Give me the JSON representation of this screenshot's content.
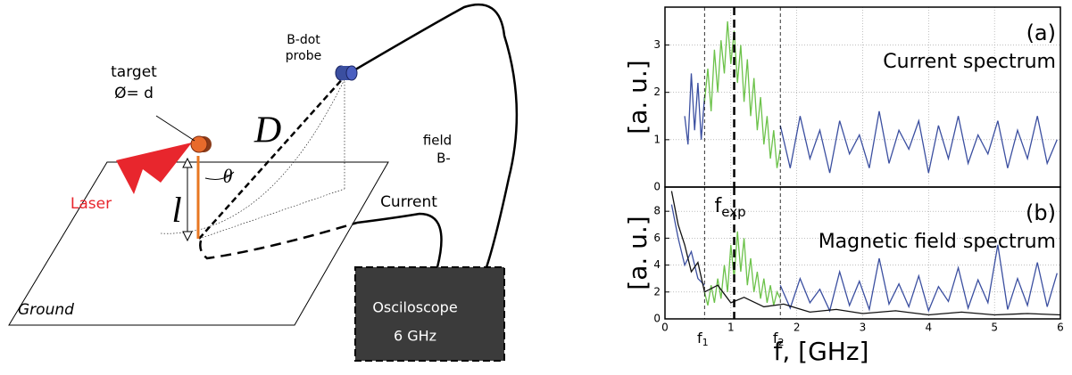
{
  "diagram": {
    "probe_line1": "B-dot",
    "probe_line2": "probe",
    "target": "target",
    "target_size": "Ø= d",
    "distance": "D",
    "angle": "θ",
    "height": "l",
    "laser": "Laser",
    "field_line1": "field",
    "field_line2": "B-",
    "current": "Current",
    "ground": "Ground",
    "scope_line1": "Osciloscope",
    "scope_line2": "6 GHz"
  },
  "chart_data": [
    {
      "type": "line",
      "ylabel": "[a. u.]",
      "panel": "(a)",
      "title": "Current spectrum",
      "xlim": [
        0,
        6
      ],
      "xticks": [
        0,
        1,
        2,
        3,
        4,
        5,
        6
      ],
      "ylim": [
        0,
        3.8
      ],
      "yticks": [
        0,
        1,
        2,
        3
      ],
      "grid": true,
      "series": [
        {
          "color": "#3b4fa0",
          "x": [
            0.3,
            0.35,
            0.4,
            0.45,
            0.5,
            0.55,
            0.6,
            1.2,
            1.75,
            1.9,
            2.05,
            2.2,
            2.35,
            2.5,
            2.65,
            2.8,
            2.95,
            3.1,
            3.25,
            3.4,
            3.55,
            3.7,
            3.85,
            4.0,
            4.15,
            4.3,
            4.45,
            4.6,
            4.75,
            4.9,
            5.05,
            5.2,
            5.35,
            5.5,
            5.65,
            5.8,
            5.95
          ],
          "values": [
            1.5,
            0.9,
            2.4,
            1.2,
            2.2,
            1.0,
            1.9,
            null,
            1.3,
            0.4,
            1.5,
            0.6,
            1.2,
            0.3,
            1.4,
            0.7,
            1.1,
            0.4,
            1.6,
            0.5,
            1.2,
            0.8,
            1.4,
            0.3,
            1.3,
            0.6,
            1.5,
            0.5,
            1.1,
            0.7,
            1.4,
            0.4,
            1.2,
            0.6,
            1.5,
            0.5,
            1.0
          ]
        },
        {
          "color": "#6cc24a",
          "x": [
            0.6,
            0.65,
            0.7,
            0.75,
            0.8,
            0.85,
            0.9,
            0.95,
            1.0,
            1.05,
            1.1,
            1.15,
            1.2,
            1.25,
            1.3,
            1.35,
            1.4,
            1.45,
            1.5,
            1.55,
            1.6,
            1.65,
            1.7,
            1.75
          ],
          "values": [
            1.8,
            2.5,
            1.6,
            2.9,
            2.0,
            3.1,
            2.4,
            3.5,
            2.6,
            3.3,
            2.2,
            3.0,
            1.8,
            2.7,
            1.5,
            2.3,
            1.2,
            1.9,
            0.9,
            1.5,
            0.6,
            1.2,
            0.4,
            0.8
          ]
        }
      ]
    },
    {
      "type": "line",
      "ylabel": "[a. u.]",
      "panel": "(b)",
      "title": "Magnetic field spectrum",
      "xlabel": "f, [GHz]",
      "xlim": [
        0,
        6
      ],
      "xticks": [
        0,
        1,
        2,
        3,
        4,
        5,
        6
      ],
      "ylim": [
        0,
        9.8
      ],
      "yticks": [
        0,
        2,
        4,
        6,
        8
      ],
      "grid": true,
      "markers": [
        {
          "value": 0.6,
          "label": "f",
          "sub": "1"
        },
        {
          "value": 1.05,
          "label": "f",
          "sub": "exp"
        },
        {
          "value": 1.75,
          "label": "f",
          "sub": "2"
        }
      ],
      "series": [
        {
          "color": "#3b4fa0",
          "x": [
            0.1,
            0.2,
            0.3,
            0.4,
            0.5,
            0.6,
            1.2,
            1.75,
            1.9,
            2.05,
            2.2,
            2.35,
            2.5,
            2.65,
            2.8,
            2.95,
            3.1,
            3.25,
            3.4,
            3.55,
            3.7,
            3.85,
            4.0,
            4.15,
            4.3,
            4.45,
            4.6,
            4.75,
            4.9,
            5.05,
            5.2,
            5.35,
            5.5,
            5.65,
            5.8,
            5.95
          ],
          "values": [
            8.5,
            6,
            4,
            5,
            3,
            2.5,
            null,
            2.5,
            0.8,
            3,
            1.2,
            2.2,
            0.6,
            3.5,
            1.0,
            2.8,
            0.7,
            4.5,
            1.1,
            2.6,
            0.9,
            3.2,
            0.6,
            2.4,
            1.3,
            3.8,
            0.8,
            2.9,
            1.2,
            5.5,
            0.7,
            3.0,
            1.0,
            4.2,
            0.9,
            3.4
          ]
        },
        {
          "color": "#6cc24a",
          "x": [
            0.6,
            0.65,
            0.7,
            0.75,
            0.8,
            0.85,
            0.9,
            0.95,
            1.0,
            1.05,
            1.1,
            1.15,
            1.2,
            1.25,
            1.3,
            1.35,
            1.4,
            1.45,
            1.5,
            1.55,
            1.6,
            1.65,
            1.7,
            1.75
          ],
          "values": [
            2,
            1,
            2.5,
            1.2,
            3,
            1.5,
            4,
            2,
            5.5,
            3,
            6.5,
            3.5,
            6,
            2.5,
            4.5,
            2,
            3.5,
            1.5,
            3,
            1.2,
            2.5,
            1,
            2,
            1.5
          ]
        },
        {
          "color": "#111111",
          "x": [
            0.1,
            0.2,
            0.3,
            0.4,
            0.5,
            0.6,
            0.8,
            1.0,
            1.2,
            1.5,
            1.8,
            2.2,
            2.6,
            3.0,
            3.5,
            4.0,
            4.5,
            5.0,
            5.5,
            6.0
          ],
          "values": [
            9.5,
            7,
            5.5,
            3.5,
            4.2,
            2,
            2.5,
            1.2,
            1.6,
            0.9,
            1.1,
            0.5,
            0.7,
            0.4,
            0.6,
            0.3,
            0.5,
            0.3,
            0.4,
            0.3
          ]
        }
      ]
    }
  ]
}
